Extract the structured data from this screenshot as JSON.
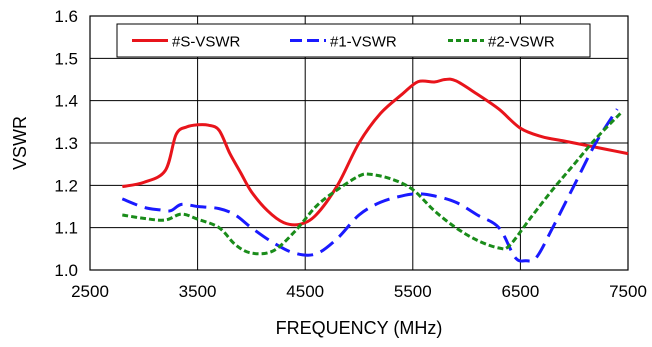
{
  "chart_data": {
    "type": "line",
    "xlabel": "FREQUENCY (MHz)",
    "ylabel": "VSWR",
    "xlim": [
      2500,
      7500
    ],
    "ylim": [
      1.0,
      1.6
    ],
    "x_ticks": [
      "2500",
      "3500",
      "4500",
      "5500",
      "6500",
      "7500"
    ],
    "y_ticks": [
      "1.0",
      "1.1",
      "1.2",
      "1.3",
      "1.4",
      "1.5",
      "1.6"
    ],
    "grid": true,
    "legend_position": "top",
    "series": [
      {
        "name": "#S-VSWR",
        "color": "#e8141b",
        "style": "solid",
        "points": [
          [
            2800,
            1.197
          ],
          [
            3000,
            1.207
          ],
          [
            3200,
            1.235
          ],
          [
            3300,
            1.32
          ],
          [
            3400,
            1.338
          ],
          [
            3500,
            1.343
          ],
          [
            3600,
            1.342
          ],
          [
            3700,
            1.33
          ],
          [
            3800,
            1.275
          ],
          [
            3900,
            1.23
          ],
          [
            4000,
            1.185
          ],
          [
            4150,
            1.14
          ],
          [
            4300,
            1.112
          ],
          [
            4450,
            1.108
          ],
          [
            4600,
            1.13
          ],
          [
            4800,
            1.2
          ],
          [
            5000,
            1.3
          ],
          [
            5200,
            1.37
          ],
          [
            5400,
            1.415
          ],
          [
            5550,
            1.445
          ],
          [
            5700,
            1.444
          ],
          [
            5800,
            1.45
          ],
          [
            5900,
            1.447
          ],
          [
            6100,
            1.415
          ],
          [
            6300,
            1.38
          ],
          [
            6500,
            1.335
          ],
          [
            6700,
            1.315
          ],
          [
            6900,
            1.305
          ],
          [
            7100,
            1.295
          ],
          [
            7300,
            1.285
          ],
          [
            7500,
            1.275
          ]
        ]
      },
      {
        "name": "#1-VSWR",
        "color": "#1a1aff",
        "style": "dashed",
        "points": [
          [
            2800,
            1.168
          ],
          [
            3000,
            1.148
          ],
          [
            3150,
            1.142
          ],
          [
            3250,
            1.14
          ],
          [
            3350,
            1.155
          ],
          [
            3500,
            1.15
          ],
          [
            3700,
            1.145
          ],
          [
            3850,
            1.13
          ],
          [
            4000,
            1.1
          ],
          [
            4200,
            1.065
          ],
          [
            4400,
            1.04
          ],
          [
            4600,
            1.038
          ],
          [
            4800,
            1.075
          ],
          [
            5000,
            1.13
          ],
          [
            5200,
            1.16
          ],
          [
            5400,
            1.175
          ],
          [
            5550,
            1.18
          ],
          [
            5700,
            1.175
          ],
          [
            5900,
            1.16
          ],
          [
            6100,
            1.13
          ],
          [
            6300,
            1.1
          ],
          [
            6450,
            1.03
          ],
          [
            6550,
            1.022
          ],
          [
            6650,
            1.03
          ],
          [
            6800,
            1.1
          ],
          [
            7000,
            1.2
          ],
          [
            7200,
            1.3
          ],
          [
            7400,
            1.38
          ]
        ]
      },
      {
        "name": "#2-VSWR",
        "color": "#1a8c1a",
        "style": "dotted",
        "points": [
          [
            2800,
            1.13
          ],
          [
            3000,
            1.122
          ],
          [
            3200,
            1.118
          ],
          [
            3350,
            1.132
          ],
          [
            3500,
            1.12
          ],
          [
            3700,
            1.1
          ],
          [
            3850,
            1.06
          ],
          [
            4000,
            1.04
          ],
          [
            4200,
            1.045
          ],
          [
            4400,
            1.09
          ],
          [
            4600,
            1.15
          ],
          [
            4800,
            1.19
          ],
          [
            5000,
            1.222
          ],
          [
            5100,
            1.226
          ],
          [
            5300,
            1.215
          ],
          [
            5500,
            1.19
          ],
          [
            5700,
            1.14
          ],
          [
            5900,
            1.1
          ],
          [
            6100,
            1.07
          ],
          [
            6300,
            1.052
          ],
          [
            6400,
            1.058
          ],
          [
            6600,
            1.125
          ],
          [
            6800,
            1.19
          ],
          [
            7000,
            1.25
          ],
          [
            7200,
            1.31
          ],
          [
            7450,
            1.375
          ]
        ]
      }
    ]
  }
}
